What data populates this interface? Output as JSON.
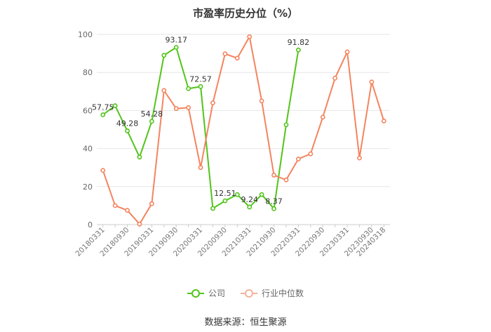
{
  "chart_data": {
    "type": "line",
    "title": "市盈率历史分位（%）",
    "categories": [
      "20180331",
      "",
      "20180930",
      "",
      "20190331",
      "",
      "20190930",
      "",
      "20200331",
      "",
      "20200930",
      "",
      "20210331",
      "",
      "20210930",
      "",
      "20220331",
      "",
      "20220930",
      "",
      "20230331",
      "",
      "20230930",
      "20240318"
    ],
    "x_tick_labels": [
      "20180331",
      "20180930",
      "20190331",
      "20190930",
      "20200331",
      "20200930",
      "20210331",
      "20210930",
      "20220331",
      "20220930",
      "20230331",
      "20230930",
      "20240318"
    ],
    "ylim": [
      0,
      100
    ],
    "y_ticks": [
      0,
      20,
      40,
      60,
      80,
      100
    ],
    "grid": true,
    "legend_position": "bottom",
    "series": [
      {
        "name": "公司",
        "color": "#52c41a",
        "values": [
          57.75,
          62.5,
          49.28,
          35.5,
          54.28,
          89.0,
          93.17,
          71.5,
          72.57,
          8.5,
          12.51,
          15.8,
          9.24,
          15.8,
          8.37,
          52.5,
          91.82,
          null,
          null,
          null,
          null,
          null,
          null,
          null
        ],
        "data_labels": [
          {
            "index": 0,
            "text": "57.75"
          },
          {
            "index": 2,
            "text": "49.28"
          },
          {
            "index": 4,
            "text": "54.28"
          },
          {
            "index": 6,
            "text": "93.17"
          },
          {
            "index": 8,
            "text": "72.57"
          },
          {
            "index": 10,
            "text": "12.51"
          },
          {
            "index": 12,
            "text": "9.24"
          },
          {
            "index": 14,
            "text": "8.37"
          },
          {
            "index": 16,
            "text": "91.82"
          }
        ]
      },
      {
        "name": "行业中位数",
        "color": "#f4845f",
        "values": [
          28.5,
          10.0,
          7.5,
          0.3,
          11.0,
          70.5,
          61.0,
          61.5,
          30.0,
          64.0,
          89.8,
          87.5,
          98.8,
          65.0,
          26.0,
          23.5,
          34.5,
          37.2,
          56.5,
          77.0,
          90.8,
          35.0,
          75.0,
          54.5
        ]
      }
    ]
  },
  "legend": {
    "company_label": "公司",
    "industry_label": "行业中位数"
  },
  "footer": {
    "source": "数据来源：恒生聚源"
  }
}
